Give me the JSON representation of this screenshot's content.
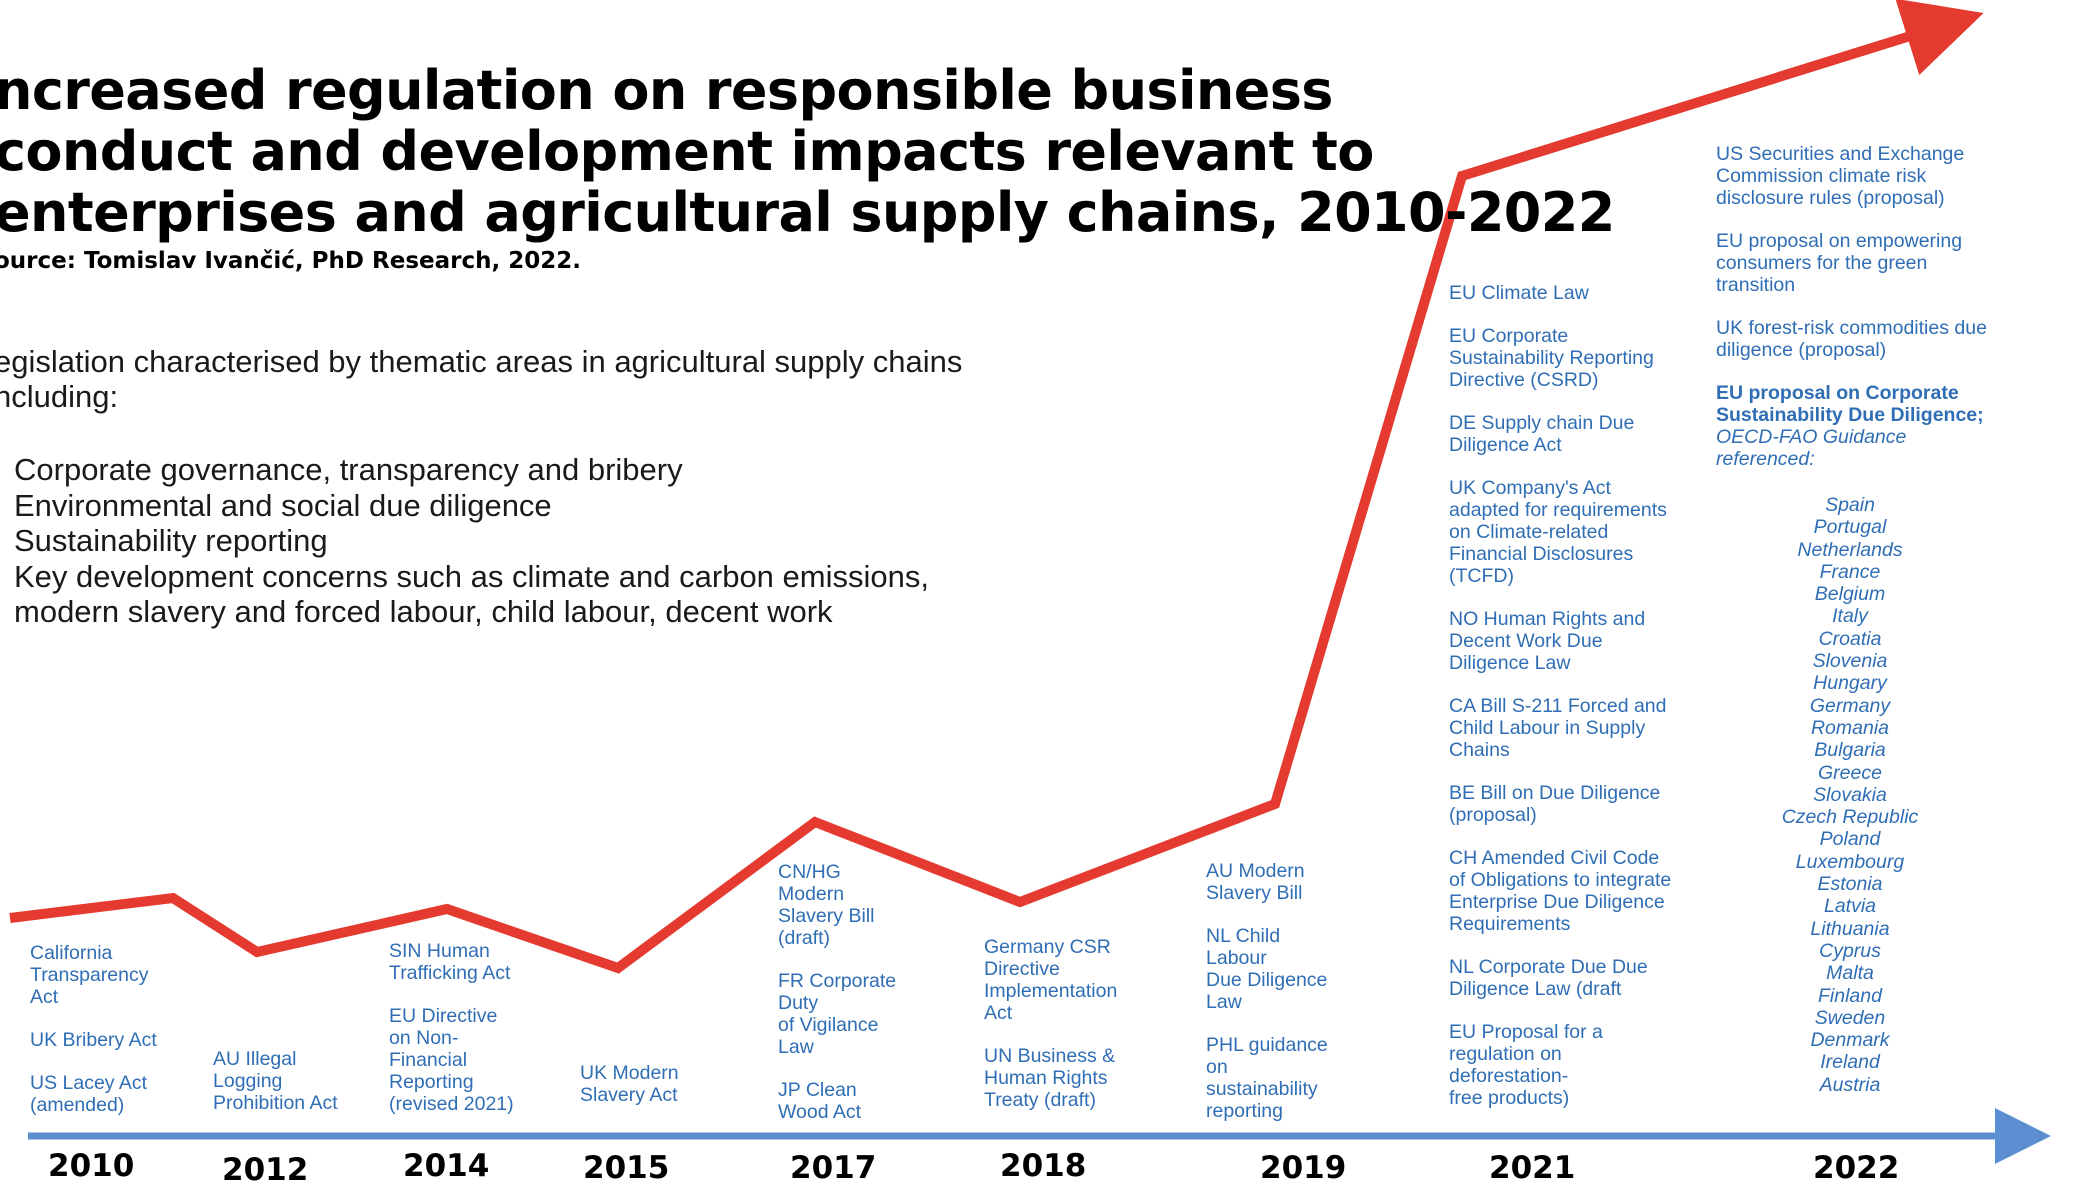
{
  "title": {
    "lines": [
      "ncreased regulation on responsible business",
      "conduct and development impacts relevant to",
      "enterprises and agricultural supply chains, 2010-2022"
    ],
    "source": "ource: Tomislav Ivančić, PhD Research, 2022."
  },
  "intro": {
    "lines": [
      "egislation characterised by thematic areas in agricultural supply chains",
      "ncluding:"
    ],
    "bullets": [
      "Corporate governance, transparency and bribery",
      "Environmental and social due diligence",
      "Sustainability reporting",
      "Key development concerns such as climate and carbon emissions,",
      "modern slavery and forced labour, child labour, decent work"
    ]
  },
  "timeline": {
    "years": [
      "2010",
      "2012",
      "2014",
      "2015",
      "2017",
      "2018",
      "2019",
      "2021",
      "2022"
    ],
    "trend_line_color": "#e53a2f",
    "axis_color": "#5b8fd1",
    "text_color": "#2f6eb5"
  },
  "events": {
    "y2010": [
      "California\nTransparency\nAct",
      "UK Bribery Act",
      "US Lacey Act\n(amended)"
    ],
    "y2012": [
      "AU Illegal\nLogging\nProhibition Act"
    ],
    "y2014": [
      "SIN Human\nTrafficking Act",
      "EU Directive\non Non-\nFinancial\nReporting\n(revised 2021)"
    ],
    "y2015": [
      "UK Modern\nSlavery Act"
    ],
    "y2017": [
      "CN/HG\nModern\nSlavery Bill\n(draft)",
      "FR Corporate\nDuty\nof Vigilance\nLaw",
      "JP Clean\nWood Act"
    ],
    "y2018": [
      "Germany CSR\nDirective\nImplementation\nAct",
      "UN Business &\nHuman Rights\nTreaty (draft)"
    ],
    "y2019": [
      "AU Modern\nSlavery Bill",
      "NL Child\nLabour\nDue Diligence\nLaw",
      "PHL guidance\non\nsustainability\nreporting"
    ],
    "y2021": [
      "EU Climate Law",
      "EU Corporate\nSustainability Reporting\nDirective (CSRD)",
      "DE Supply chain Due\nDiligence Act",
      "UK Company's Act\nadapted for requirements\non Climate-related\nFinancial Disclosures\n(TCFD)",
      "NO Human Rights and\nDecent Work Due\nDiligence Law",
      "CA Bill S-211 Forced and\nChild Labour in Supply\nChains",
      "BE Bill on Due Diligence\n(proposal)",
      "CH Amended Civil Code\nof Obligations to integrate\nEnterprise Due Diligence\nRequirements",
      "NL Corporate Due Due\nDiligence Law (draft",
      "EU Proposal for a\nregulation on\ndeforestation-\nfree products)"
    ],
    "y2022": [
      "US Securities and Exchange\nCommission climate risk\ndisclosure rules (proposal)",
      "EU proposal on empowering\nconsumers for the green\ntransition",
      "UK forest-risk commodities due\ndiligence (proposal)"
    ],
    "y2022_bold": "EU proposal on Corporate\nSustainability Due Diligence;",
    "y2022_italic": "OECD-FAO Guidance\nreferenced:",
    "countries": [
      "Spain",
      "Portugal",
      "Netherlands",
      "France",
      "Belgium",
      "Italy",
      "Croatia",
      "Slovenia",
      "Hungary",
      "Germany",
      "Romania",
      "Bulgaria",
      "Greece",
      "Slovakia",
      "Czech Republic",
      "Poland",
      "Luxembourg",
      "Estonia",
      "Latvia",
      "Lithuania",
      "Cyprus",
      "Malta",
      "Finland",
      "Sweden",
      "Denmark",
      "Ireland",
      "Austria"
    ]
  }
}
